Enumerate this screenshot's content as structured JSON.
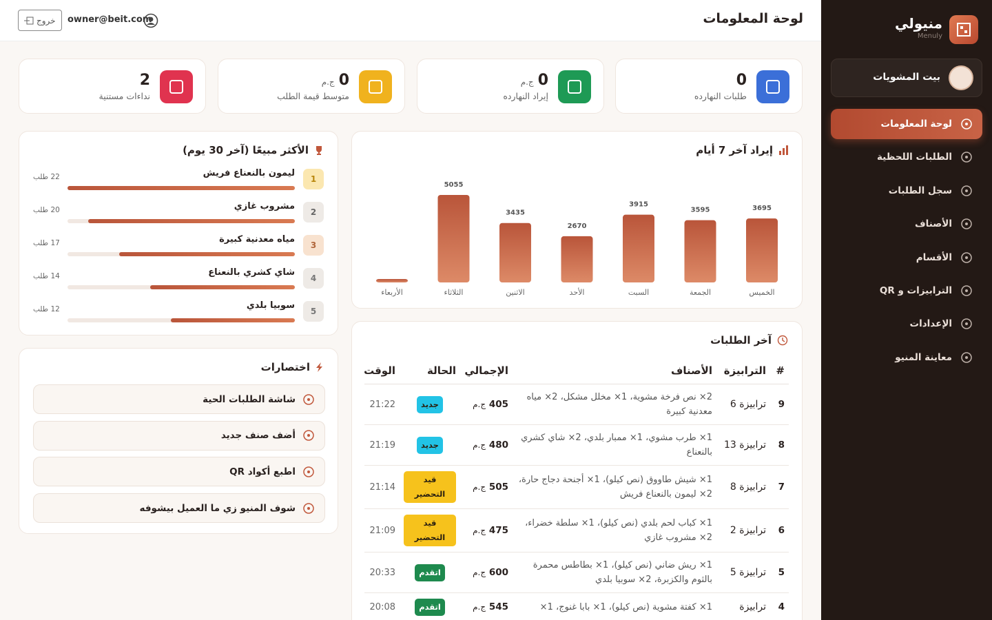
{
  "sidebar": {
    "brand": "منيولي",
    "brand_sub": "Menuly",
    "restaurant": "بيت المشويات",
    "nav": [
      "لوحة المعلومات",
      "الطلبات اللحظية",
      "سجل الطلبات",
      "الأصناف",
      "الأقسام",
      "الترابيزات و QR",
      "الإعدادات",
      "معاينة المنيو"
    ]
  },
  "header": {
    "title": "لوحة المعلومات",
    "email": "owner@beit.com",
    "logout": "خروج"
  },
  "currency": "ج.م",
  "stats": [
    {
      "label": "طلبات النهارده",
      "value": 0
    },
    {
      "label": "إيراد النهارده",
      "value": 0,
      "unit": "ج.م"
    },
    {
      "label": "متوسط قيمة الطلب",
      "value": 0,
      "unit": "ج.م"
    },
    {
      "label": "نداءات مستنية",
      "value": 2
    }
  ],
  "revenue_chart": {
    "type": "bar",
    "title": "إيراد آخر 7 أيام",
    "categories": [
      "الخميس",
      "الجمعة",
      "السبت",
      "الأحد",
      "الاثنين",
      "الثلاثاء",
      "الأربعاء"
    ],
    "values": [
      3695,
      3595,
      3915,
      2670,
      3435,
      5055,
      0
    ],
    "value_labels": [
      "3695",
      "3595",
      "3915",
      "2670",
      "3435",
      "5055",
      null
    ],
    "color": "#b9553a"
  },
  "top_sellers": {
    "title": "الأكثر مبيعًا (آخر 30 يوم)",
    "items": [
      {
        "rank": 1,
        "name": "ليمون بالنعناع فريش",
        "count": 22,
        "count_label": "22 طلب"
      },
      {
        "rank": 2,
        "name": "مشروب غازي",
        "count": 20,
        "count_label": "20 طلب"
      },
      {
        "rank": 3,
        "name": "مياه معدنية كبيرة",
        "count": 17,
        "count_label": "17 طلب"
      },
      {
        "rank": 4,
        "name": "شاي كشري بالنعناع",
        "count": 14,
        "count_label": "14 طلب"
      },
      {
        "rank": 5,
        "name": "سوبيا بلدي",
        "count": 12,
        "count_label": "12 طلب"
      }
    ]
  },
  "shortcuts": {
    "title": "اختصارات",
    "items": [
      "شاشة الطلبات الحية",
      "أضف صنف جديد",
      "اطبع أكواد QR",
      "شوف المنيو زي ما العميل بيشوفه"
    ]
  },
  "orders": {
    "title": "آخر الطلبات",
    "columns": [
      "#",
      "الترابيزة",
      "الأصناف",
      "الإجمالي",
      "الحالة",
      "الوقت"
    ],
    "rows": [
      {
        "id": 9,
        "table": "ترابيزة 6",
        "items": "2× نص فرخة مشوية، 1× مخلل مشكل، 2× مياه معدنية كبيرة",
        "total": 405,
        "status": "جديد",
        "status_color": "#22c3e6",
        "time": "21:22"
      },
      {
        "id": 8,
        "table": "ترابيزة 13",
        "items": "1× طرب مشوي، 1× ممبار بلدي، 2× شاي كشري بالنعناع",
        "total": 480,
        "status": "جديد",
        "status_color": "#22c3e6",
        "time": "21:19"
      },
      {
        "id": 7,
        "table": "ترابيزة 8",
        "items": "1× شيش طاووق (نص كيلو)، 1× أجنحة دجاج حارة، 2× ليمون بالنعناع فريش",
        "total": 505,
        "status": "قيد التحضير",
        "status_color": "#f6c21c",
        "time": "21:14"
      },
      {
        "id": 6,
        "table": "ترابيزة 2",
        "items": "1× كباب لحم بلدي (نص كيلو)، 1× سلطة خضراء، 2× مشروب غازي",
        "total": 475,
        "status": "قيد التحضير",
        "status_color": "#f6c21c",
        "time": "21:09"
      },
      {
        "id": 5,
        "table": "ترابيزة 5",
        "items": "1× ريش ضاني (نص كيلو)، 1× بطاطس محمرة بالثوم والكزبرة، 2× سوبيا بلدي",
        "total": 600,
        "status": "اتقدم",
        "status_color": "#1e8a4e",
        "time": "20:33"
      },
      {
        "id": 4,
        "table": "ترابيزة",
        "items": "1× كفتة مشوية (نص كيلو)، 1× بابا غنوج، 1×",
        "total": 545,
        "status": "اتقدم",
        "status_color": "#1e8a4e",
        "time": "20:08"
      }
    ]
  }
}
